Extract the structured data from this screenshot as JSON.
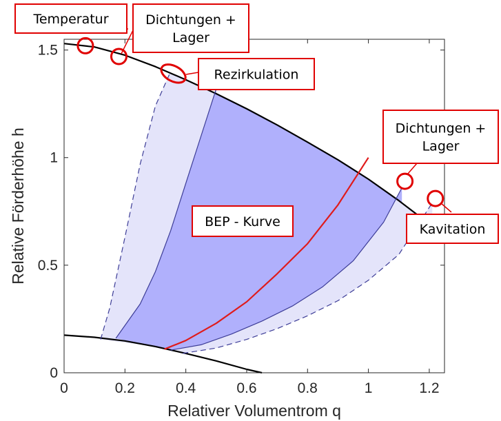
{
  "chart_data": {
    "type": "area",
    "xlabel": "Relativer Volumentrom q",
    "ylabel": "Relative Förderhöhe h",
    "xlim": [
      0,
      1.25
    ],
    "ylim": [
      0,
      1.55
    ],
    "xticks": [
      0,
      0.2,
      0.4,
      0.6,
      0.8,
      1,
      1.2
    ],
    "xtick_labels": [
      "0",
      "0.2",
      "0.4",
      "0.6",
      "0.8",
      "1",
      "1.2"
    ],
    "yticks": [
      0,
      0.5,
      1,
      1.5
    ],
    "ytick_labels": [
      "0",
      "0.5",
      "1",
      "1.5"
    ],
    "grid": false,
    "legend": "none",
    "colors": {
      "outer_fill": "#e4e4fa",
      "inner_fill": "#b0b0fc",
      "boundary_line": "#3c3c96",
      "bep_line": "#e01b1b",
      "curve_line": "#000000",
      "callout": "#e00000"
    },
    "series": [
      {
        "role": "max-head-curve",
        "x": [
          0,
          0.1,
          0.2,
          0.3,
          0.4,
          0.5,
          0.6,
          0.7,
          0.8,
          0.9,
          1.0,
          1.1,
          1.2,
          1.25
        ],
        "y": [
          1.53,
          1.514,
          1.476,
          1.423,
          1.362,
          1.297,
          1.227,
          1.152,
          1.072,
          0.99,
          0.9,
          0.8,
          0.692,
          0.63
        ]
      },
      {
        "role": "min-head-curve",
        "x": [
          0,
          0.1,
          0.2,
          0.3,
          0.4,
          0.5,
          0.6,
          0.65
        ],
        "y": [
          0.175,
          0.165,
          0.148,
          0.122,
          0.09,
          0.055,
          0.016,
          0.0
        ]
      },
      {
        "role": "outer-left-limit-dashed",
        "x": [
          0.12,
          0.15,
          0.2,
          0.25,
          0.3,
          0.35
        ],
        "y": [
          0.155,
          0.3,
          0.63,
          0.97,
          1.24,
          1.4
        ]
      },
      {
        "role": "inner-left-limit",
        "x": [
          0.17,
          0.25,
          0.3,
          0.35,
          0.4,
          0.45,
          0.5
        ],
        "y": [
          0.16,
          0.32,
          0.47,
          0.66,
          0.88,
          1.1,
          1.32
        ]
      },
      {
        "role": "bep-curve",
        "x": [
          0.33,
          0.4,
          0.5,
          0.6,
          0.7,
          0.8,
          0.9,
          1.0
        ],
        "y": [
          0.11,
          0.15,
          0.23,
          0.33,
          0.46,
          0.6,
          0.78,
          1.0
        ]
      },
      {
        "role": "inner-right-limit",
        "x": [
          0.35,
          0.45,
          0.55,
          0.65,
          0.75,
          0.85,
          0.95,
          1.05,
          1.11
        ],
        "y": [
          0.105,
          0.13,
          0.18,
          0.24,
          0.31,
          0.4,
          0.52,
          0.7,
          0.86
        ]
      },
      {
        "role": "outer-right-limit-dashed",
        "x": [
          0.39,
          0.5,
          0.6,
          0.7,
          0.8,
          0.9,
          1.0,
          1.1,
          1.21
        ],
        "y": [
          0.09,
          0.115,
          0.155,
          0.205,
          0.265,
          0.335,
          0.43,
          0.55,
          0.79
        ]
      }
    ],
    "annotations": [
      {
        "id": "temperatur",
        "text": [
          "Temperatur"
        ],
        "point": [
          0.07,
          1.52
        ]
      },
      {
        "id": "dichtungen-lager-left",
        "text": [
          "Dichtungen +",
          "Lager"
        ],
        "point": [
          0.18,
          1.47
        ]
      },
      {
        "id": "rezirkulation",
        "text": [
          "Rezirkulation"
        ],
        "point": [
          0.35,
          1.4
        ]
      },
      {
        "id": "dichtungen-lager-right",
        "text": [
          "Dichtungen +",
          "Lager"
        ],
        "point": [
          1.12,
          0.89
        ]
      },
      {
        "id": "kavitation",
        "text": [
          "Kavitation"
        ],
        "point": [
          1.22,
          0.81
        ]
      },
      {
        "id": "bep-kurve",
        "text": [
          "BEP - Kurve"
        ],
        "point": null
      }
    ]
  }
}
